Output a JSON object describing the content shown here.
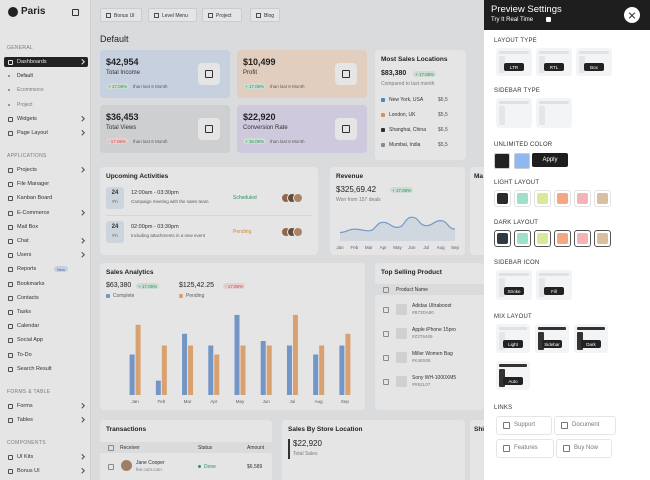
{
  "sidebar": {
    "brand": "Paris",
    "sections": [
      {
        "title": "GENERAL",
        "items": [
          {
            "label": "Dashboards",
            "submenu": true,
            "active": true,
            "children": [
              "Default",
              "Ecommerce",
              "Project"
            ]
          },
          {
            "label": "Widgets",
            "submenu": true
          },
          {
            "label": "Page Layout",
            "submenu": true
          }
        ]
      },
      {
        "title": "APPLICATIONS",
        "items": [
          {
            "label": "Projects",
            "submenu": true
          },
          {
            "label": "File Manager"
          },
          {
            "label": "Kanban Board"
          },
          {
            "label": "E-Commerce",
            "submenu": true
          },
          {
            "label": "Mail Box"
          },
          {
            "label": "Chat",
            "submenu": true
          },
          {
            "label": "Users",
            "submenu": true
          },
          {
            "label": "Reports",
            "badge": "New"
          },
          {
            "label": "Bookmarks"
          },
          {
            "label": "Contacts"
          },
          {
            "label": "Tasks"
          },
          {
            "label": "Calendar"
          },
          {
            "label": "Social App"
          },
          {
            "label": "To-Do"
          },
          {
            "label": "Search Result"
          }
        ]
      },
      {
        "title": "FORMS & TABLE",
        "items": [
          {
            "label": "Forms",
            "submenu": true
          },
          {
            "label": "Tables",
            "submenu": true
          }
        ]
      },
      {
        "title": "COMPONENTS",
        "items": [
          {
            "label": "UI Kits",
            "submenu": true
          },
          {
            "label": "Bonus UI",
            "submenu": true
          }
        ]
      }
    ]
  },
  "topbar": {
    "buttons": [
      "Bonus UI",
      "Level Menu",
      "Project",
      "Blog"
    ]
  },
  "page_title": "Default",
  "stats": [
    {
      "value": "$42,954",
      "label": "Total Income",
      "change": "+ 17.06%",
      "note": "than last 6 Month",
      "color": "#dce7f7"
    },
    {
      "value": "$10,499",
      "label": "Profit",
      "change": "+ 17.06%",
      "note": "than last 6 Month",
      "color": "#fbe5d3"
    },
    {
      "value": "$36,453",
      "label": "Total Views",
      "change": "- 17.06%",
      "note": "than last 6 Month",
      "color": "#e5e6e9"
    },
    {
      "value": "$22,920",
      "label": "Conversion Rate",
      "change": "+ 16.06%",
      "note": "than last 6 Month",
      "color": "#e5e0f5"
    }
  ],
  "most_sales": {
    "title": "Most Sales Locations",
    "total": "$83,380",
    "change": "+ 17.06%",
    "note": "Compared to last month",
    "locations": [
      {
        "name": "New York, USA",
        "value": "$6,5",
        "color": "#5b8fd6"
      },
      {
        "name": "London, UK",
        "value": "$5,5",
        "color": "#f0a060"
      },
      {
        "name": "Shanghai, China",
        "value": "$6,5",
        "color": "#333333"
      },
      {
        "name": "Mumbai, India",
        "value": "$5,5",
        "color": "#8a9bb0"
      }
    ]
  },
  "activities": {
    "title": "Upcoming Activities",
    "events": [
      {
        "day": "24",
        "weekday": "Fri",
        "time": "12:00am - 03:30pm",
        "text": "Campaign meeting with the sales team",
        "status": "Scheduled",
        "status_color": "#2fa36b"
      },
      {
        "day": "24",
        "weekday": "Fri",
        "time": "02:00pm - 03:30pm",
        "text": "Including attachments in a new event",
        "status": "Pending",
        "status_color": "#e89a3c"
      }
    ]
  },
  "revenue": {
    "title": "Revenue",
    "total": "$325,69.42",
    "change": "+ 17.06%",
    "note": "Won from 157 deals",
    "chart": {
      "type": "line",
      "categories": [
        "Jan",
        "Feb",
        "Mar",
        "Apr",
        "May",
        "Jun",
        "Jul",
        "Aug",
        "Sep"
      ],
      "values": [
        25,
        35,
        30,
        55,
        40,
        70,
        45,
        60,
        35
      ],
      "ylim": [
        0,
        100
      ],
      "color": "#7fa8e0"
    }
  },
  "partial_cards": {
    "top": "Ma",
    "bottom": "Shi"
  },
  "sales_analytics": {
    "title": "Sales Analytics",
    "complete": {
      "value": "$63,380",
      "change": "+ 17.06%"
    },
    "pending": {
      "value": "$125,42.25",
      "change": "- 17.06%"
    },
    "chart": {
      "type": "bar",
      "categories": [
        "Jan",
        "Feb",
        "Mar",
        "Apr",
        "May",
        "Jun",
        "Jul",
        "Aug",
        "Sep"
      ],
      "ylim": [
        0,
        100
      ],
      "series": [
        {
          "name": "Complete",
          "color": "#7ea6dc",
          "values": [
            45,
            16,
            68,
            55,
            89,
            60,
            55,
            45,
            55
          ]
        },
        {
          "name": "Pending",
          "color": "#f2b27a",
          "values": [
            78,
            55,
            55,
            45,
            55,
            55,
            89,
            55,
            68
          ]
        }
      ]
    }
  },
  "top_selling": {
    "title": "Top Selling Product",
    "header": "Product Name",
    "products": [
      {
        "name": "Adidas Ultraboost",
        "code": "#B73DA80"
      },
      {
        "name": "Apple iPhone 15pro",
        "code": "#Z3T6489"
      },
      {
        "name": "Miller Women Bag",
        "code": "#K48S08"
      },
      {
        "name": "Sony WH-1000XM5",
        "code": "#R52L07"
      }
    ]
  },
  "transactions": {
    "title": "Transactions",
    "columns": [
      "Receiver",
      "Status",
      "Amount"
    ],
    "rows": [
      {
        "name": "Jane Cooper",
        "email": "fee.com.com",
        "status": "Done",
        "amount": "$6,589"
      }
    ]
  },
  "store": {
    "title": "Sales By Store Location",
    "total": "$22,920",
    "note": "Total Sales"
  },
  "settings": {
    "title": "Preview Settings",
    "subtitle": "Try It Real Time",
    "layout_type": {
      "title": "LAYOUT TYPE",
      "options": [
        "LTR",
        "RTL",
        "Box"
      ]
    },
    "sidebar_type": {
      "title": "SIDEBAR TYPE"
    },
    "unlimited_color": {
      "title": "UNLIMITED COLOR",
      "colors": [
        "#222222",
        "#8fb8f0"
      ],
      "button": "Apply"
    },
    "light_layout": {
      "title": "LIGHT LAYOUT",
      "colors": [
        "#2b2b2b",
        "#9ee0cc",
        "#d8ea9a",
        "#f5a77f",
        "#f5b3b8",
        "#d9bfa0"
      ]
    },
    "dark_layout": {
      "title": "DARK LAYOUT",
      "colors": [
        "#2f3a44",
        "#9ee0cc",
        "#d8ea9a",
        "#f5a77f",
        "#f5b3b8",
        "#d9bfa0"
      ]
    },
    "sidebar_icon": {
      "title": "SIDEBAR ICON",
      "options": [
        "Stroke",
        "Fill"
      ]
    },
    "mix_layout": {
      "title": "MIX LAYOUT",
      "options": [
        "Light",
        "Sidebar",
        "Dark",
        "Auto"
      ]
    },
    "links": {
      "title": "LINKS",
      "items": [
        "Support",
        "Document",
        "Features",
        "Buy Now"
      ]
    }
  }
}
